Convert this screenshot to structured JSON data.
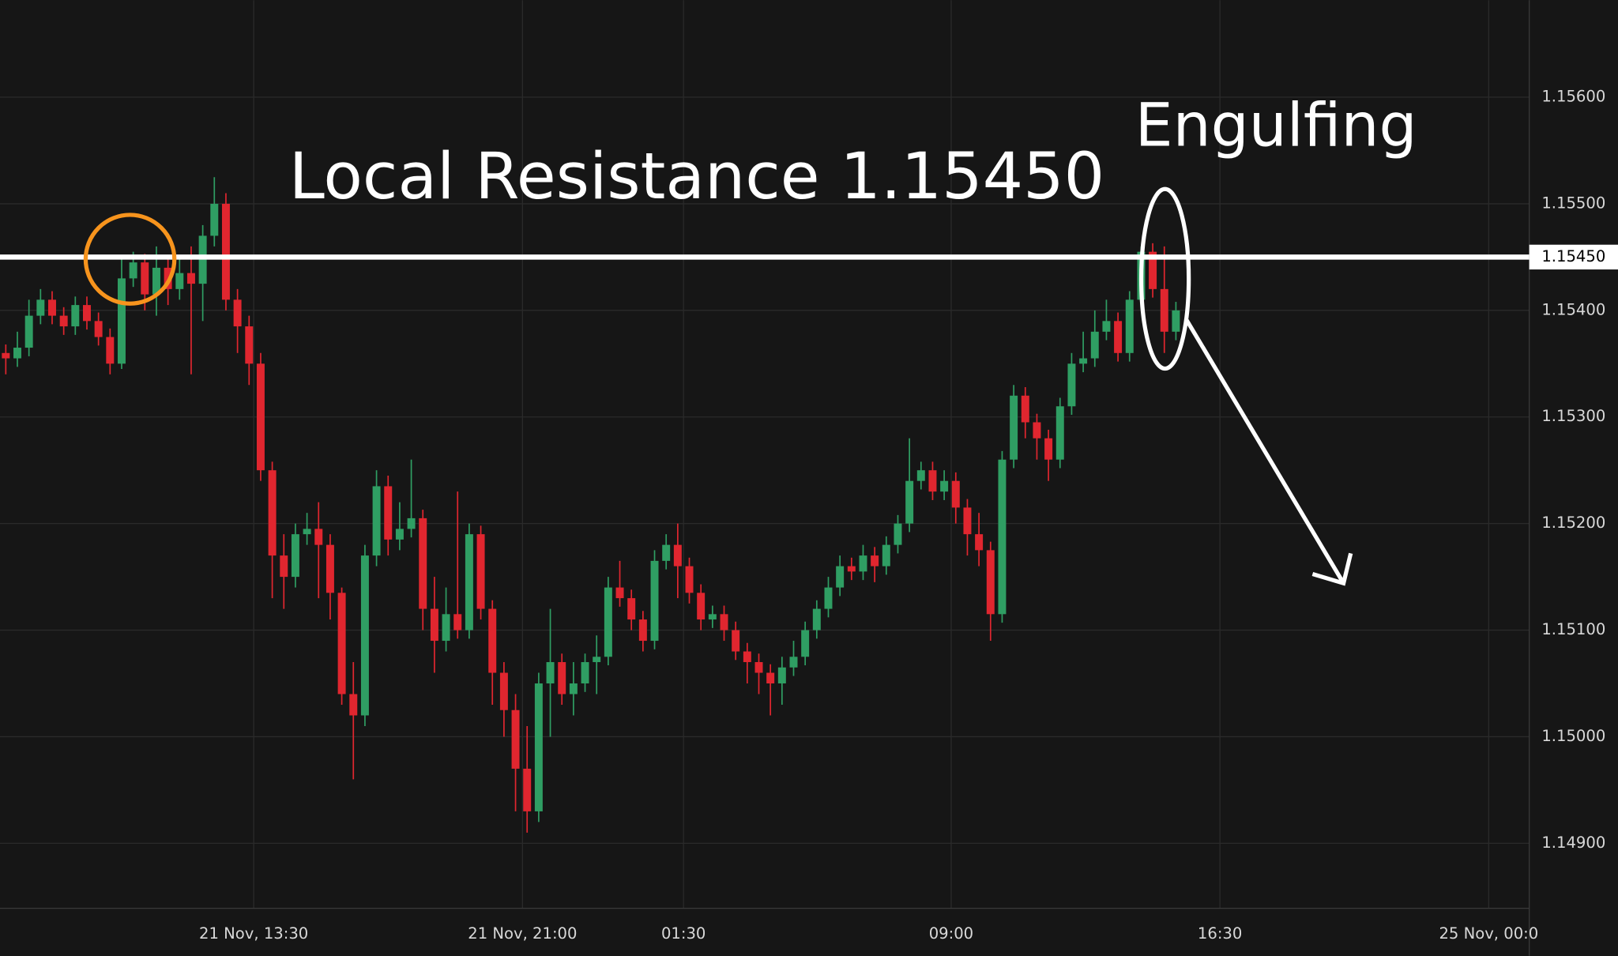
{
  "chart_data": {
    "type": "candlestick",
    "up_color": "#2f9e63",
    "down_color": "#e0262f",
    "grid": true,
    "annotations": [
      "Local Resistance 1.15450",
      "Engulfing"
    ],
    "resistance": {
      "value": 1.1545,
      "label": "1.15450"
    },
    "xlim": [
      -0.5,
      131.5
    ],
    "xticks": [
      {
        "value": 21.4,
        "label": "21 Nov, 13:30"
      },
      {
        "value": 44.6,
        "label": "21 Nov, 21:00"
      },
      {
        "value": 58.5,
        "label": "01:30"
      },
      {
        "value": 81.6,
        "label": "09:00"
      },
      {
        "value": 104.8,
        "label": "16:30"
      },
      {
        "value": 128.0,
        "label": "25 Nov, 00:0"
      }
    ],
    "ylim": [
      1.14839,
      1.15691
    ],
    "yticks": [
      {
        "value": 1.149,
        "label": "1.14900"
      },
      {
        "value": 1.15,
        "label": "1.15000"
      },
      {
        "value": 1.151,
        "label": "1.15100"
      },
      {
        "value": 1.152,
        "label": "1.15200"
      },
      {
        "value": 1.153,
        "label": "1.15300"
      },
      {
        "value": 1.154,
        "label": "1.15400"
      },
      {
        "value": 1.155,
        "label": "1.15500"
      },
      {
        "value": 1.156,
        "label": "1.15600"
      }
    ],
    "open": [
      1.1536,
      1.15355,
      1.15365,
      1.15395,
      1.1541,
      1.15395,
      1.15385,
      1.15405,
      1.1539,
      1.15375,
      1.1535,
      1.1543,
      1.15445,
      1.15415,
      1.1544,
      1.1542,
      1.15435,
      1.15425,
      1.1547,
      1.155,
      1.1541,
      1.15385,
      1.1535,
      1.1525,
      1.1517,
      1.1515,
      1.1519,
      1.15195,
      1.1518,
      1.15135,
      1.1504,
      1.1502,
      1.1517,
      1.15235,
      1.15185,
      1.15195,
      1.15205,
      1.1512,
      1.1509,
      1.15115,
      1.151,
      1.1519,
      1.1512,
      1.1506,
      1.15025,
      1.1497,
      1.1493,
      1.1505,
      1.1507,
      1.1504,
      1.1505,
      1.1507,
      1.15075,
      1.1514,
      1.1513,
      1.1511,
      1.1509,
      1.15165,
      1.1518,
      1.1516,
      1.15135,
      1.1511,
      1.15115,
      1.151,
      1.1508,
      1.1507,
      1.1506,
      1.1505,
      1.15065,
      1.15075,
      1.151,
      1.1512,
      1.1514,
      1.1516,
      1.15155,
      1.1517,
      1.1516,
      1.1518,
      1.152,
      1.1524,
      1.1525,
      1.1523,
      1.1524,
      1.15215,
      1.1519,
      1.15175,
      1.15115,
      1.1526,
      1.1532,
      1.15295,
      1.1528,
      1.1526,
      1.1531,
      1.1535,
      1.15355,
      1.1538,
      1.1539,
      1.1536,
      1.1541,
      1.15455,
      1.1542,
      1.1538
    ],
    "high": [
      1.15368,
      1.1538,
      1.1541,
      1.1542,
      1.15418,
      1.15403,
      1.15413,
      1.15413,
      1.15398,
      1.15383,
      1.1545,
      1.15455,
      1.15453,
      1.1546,
      1.15448,
      1.1545,
      1.1546,
      1.1548,
      1.15525,
      1.1551,
      1.1542,
      1.15395,
      1.1536,
      1.15258,
      1.1519,
      1.152,
      1.1521,
      1.1522,
      1.1519,
      1.1514,
      1.1507,
      1.1518,
      1.1525,
      1.15245,
      1.1522,
      1.1526,
      1.15213,
      1.1515,
      1.1514,
      1.1523,
      1.152,
      1.15198,
      1.15128,
      1.1507,
      1.1504,
      1.1501,
      1.1506,
      1.1512,
      1.15078,
      1.1507,
      1.15078,
      1.15095,
      1.1515,
      1.15165,
      1.15138,
      1.15118,
      1.15175,
      1.1519,
      1.152,
      1.15168,
      1.15143,
      1.15123,
      1.15123,
      1.15108,
      1.15088,
      1.15078,
      1.15068,
      1.15075,
      1.1509,
      1.15108,
      1.15128,
      1.1515,
      1.1517,
      1.15168,
      1.1518,
      1.15178,
      1.15188,
      1.15208,
      1.1528,
      1.15258,
      1.15258,
      1.1525,
      1.15248,
      1.15223,
      1.1521,
      1.15183,
      1.15268,
      1.1533,
      1.15328,
      1.15303,
      1.15288,
      1.15318,
      1.1536,
      1.1538,
      1.154,
      1.1541,
      1.15398,
      1.15418,
      1.1546,
      1.15463,
      1.1546,
      1.15408
    ],
    "low": [
      1.1534,
      1.15347,
      1.15357,
      1.15387,
      1.15387,
      1.15377,
      1.15377,
      1.15382,
      1.15367,
      1.1534,
      1.15345,
      1.15422,
      1.154,
      1.15395,
      1.15405,
      1.1541,
      1.1534,
      1.1539,
      1.1546,
      1.154,
      1.1536,
      1.1533,
      1.1524,
      1.1513,
      1.1512,
      1.1514,
      1.1518,
      1.1513,
      1.1511,
      1.1503,
      1.1496,
      1.1501,
      1.1516,
      1.1517,
      1.15175,
      1.15187,
      1.151,
      1.1506,
      1.1508,
      1.15092,
      1.15092,
      1.1511,
      1.1503,
      1.15,
      1.1493,
      1.1491,
      1.1492,
      1.15,
      1.1503,
      1.1502,
      1.15042,
      1.1504,
      1.15067,
      1.15122,
      1.151,
      1.1508,
      1.15082,
      1.15157,
      1.1513,
      1.15125,
      1.151,
      1.15102,
      1.1509,
      1.15072,
      1.1505,
      1.1504,
      1.1502,
      1.1503,
      1.15057,
      1.15067,
      1.15092,
      1.15112,
      1.15132,
      1.15147,
      1.15147,
      1.15145,
      1.15152,
      1.15172,
      1.15192,
      1.15232,
      1.15222,
      1.15222,
      1.152,
      1.1517,
      1.1516,
      1.1509,
      1.15107,
      1.15252,
      1.1528,
      1.1526,
      1.1524,
      1.15252,
      1.15302,
      1.15342,
      1.15347,
      1.15372,
      1.15352,
      1.15352,
      1.15402,
      1.15412,
      1.1536,
      1.15372
    ],
    "close": [
      1.15355,
      1.15365,
      1.15395,
      1.1541,
      1.15395,
      1.15385,
      1.15405,
      1.1539,
      1.15375,
      1.1535,
      1.1543,
      1.15445,
      1.15415,
      1.1544,
      1.1542,
      1.15435,
      1.15425,
      1.1547,
      1.155,
      1.1541,
      1.15385,
      1.1535,
      1.1525,
      1.1517,
      1.1515,
      1.1519,
      1.15195,
      1.1518,
      1.15135,
      1.1504,
      1.1502,
      1.1517,
      1.15235,
      1.15185,
      1.15195,
      1.15205,
      1.1512,
      1.1509,
      1.15115,
      1.151,
      1.1519,
      1.1512,
      1.1506,
      1.15025,
      1.1497,
      1.1493,
      1.1505,
      1.1507,
      1.1504,
      1.1505,
      1.1507,
      1.15075,
      1.1514,
      1.1513,
      1.1511,
      1.1509,
      1.15165,
      1.1518,
      1.1516,
      1.15135,
      1.1511,
      1.15115,
      1.151,
      1.1508,
      1.1507,
      1.1506,
      1.1505,
      1.15065,
      1.15075,
      1.151,
      1.1512,
      1.1514,
      1.1516,
      1.15155,
      1.1517,
      1.1516,
      1.1518,
      1.152,
      1.1524,
      1.1525,
      1.1523,
      1.1524,
      1.15215,
      1.1519,
      1.15175,
      1.15115,
      1.1526,
      1.1532,
      1.15295,
      1.1528,
      1.1526,
      1.1531,
      1.1535,
      1.15355,
      1.1538,
      1.1539,
      1.1536,
      1.1541,
      1.15455,
      1.1542,
      1.1538,
      1.154
    ]
  }
}
